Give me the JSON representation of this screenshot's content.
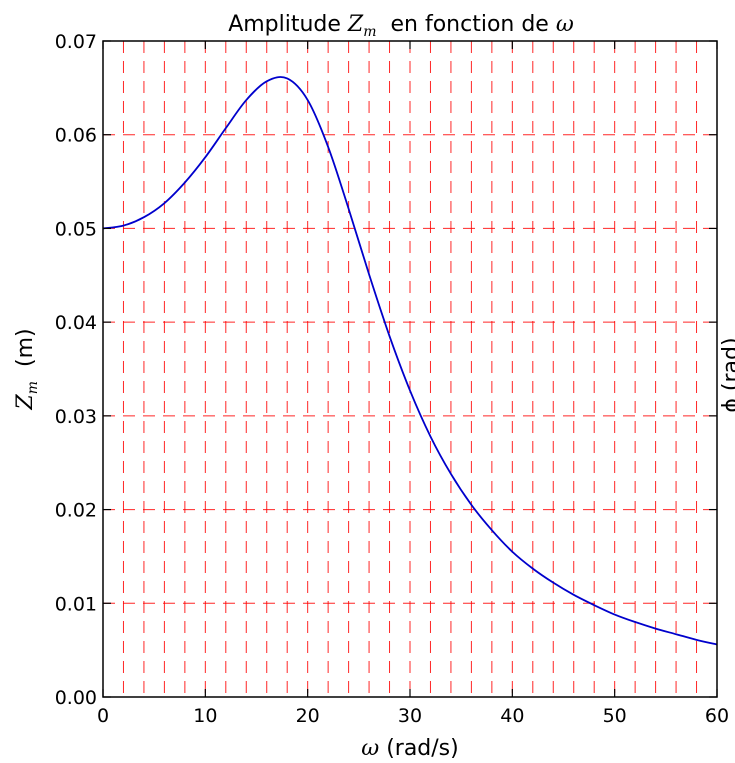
{
  "chart_data": {
    "type": "line",
    "title": {
      "prefix": "Amplitude ",
      "math_symbol": "Z",
      "math_subscript": "m",
      "middle": "  en fonction de ",
      "math_end": "ω"
    },
    "xlabel": {
      "symbol": "ω",
      "text": " (rad/s)"
    },
    "ylabel": {
      "symbol": "Z",
      "subscript": "m",
      "text": "  (m)"
    },
    "right_label_fragment": "ϕ (rad)",
    "xlim": [
      0,
      60
    ],
    "ylim": [
      0,
      0.07
    ],
    "x_ticks": [
      0,
      10,
      20,
      30,
      40,
      50,
      60
    ],
    "x_tick_labels": [
      "0",
      "10",
      "20",
      "30",
      "40",
      "50",
      "60"
    ],
    "y_ticks": [
      0,
      0.01,
      0.02,
      0.03,
      0.04,
      0.05,
      0.06,
      0.07
    ],
    "y_tick_labels": [
      "0.00",
      "0.01",
      "0.02",
      "0.03",
      "0.04",
      "0.05",
      "0.06",
      "0.07"
    ],
    "minor_x_step": 2,
    "grid": true,
    "grid_color": "#ff0000",
    "series": [
      {
        "color": "#0000cc",
        "x": [
          0,
          2,
          4,
          6,
          8,
          10,
          12,
          14,
          16,
          18,
          20,
          22,
          24,
          26,
          28,
          30,
          32,
          34,
          36,
          38,
          40,
          42,
          44,
          46,
          48,
          50,
          52,
          54,
          56,
          58,
          60
        ],
        "y": [
          0.05,
          0.0503,
          0.0512,
          0.0527,
          0.0549,
          0.0576,
          0.0607,
          0.0637,
          0.0657,
          0.066,
          0.0637,
          0.0587,
          0.0521,
          0.0451,
          0.0385,
          0.0327,
          0.0278,
          0.0238,
          0.0205,
          0.0178,
          0.0155,
          0.0137,
          0.0122,
          0.0109,
          0.0098,
          0.0088,
          0.008,
          0.0073,
          0.0067,
          0.0061,
          0.0056
        ]
      }
    ]
  }
}
